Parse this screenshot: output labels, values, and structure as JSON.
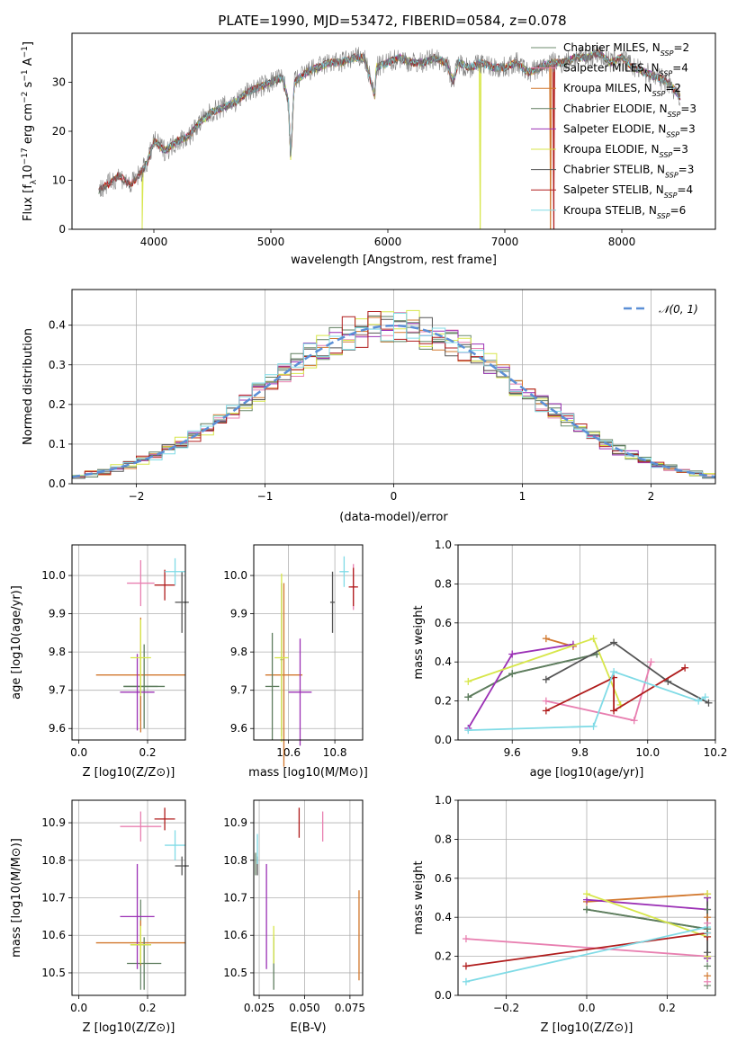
{
  "figure_title": "PLATE=1990, MJD=53472, FIBERID=0584, z=0.078",
  "colors": {
    "Chabrier MILES": "#6e8b6e",
    "Salpeter MILES": "#e87fb0",
    "Kroupa MILES": "#d2782e",
    "Chabrier ELODIE": "#5e7d5e",
    "Salpeter ELODIE": "#9b30b5",
    "Kroupa ELODIE": "#d7e64a",
    "Chabrier STELIB": "#555555",
    "Salpeter STELIB": "#b01c1c",
    "Kroupa STELIB": "#80dbe6",
    "gauss": "#5b8fd6"
  },
  "chart_data": [
    {
      "id": "spectrum",
      "type": "line",
      "xlabel": "wavelength [Angstrom, rest frame]",
      "ylabel": "Flux [f_λ 10^-17 erg cm^-2 s^-1 A^-1]",
      "xlim": [
        3300,
        8800
      ],
      "ylim": [
        0,
        40
      ],
      "xticks": [
        4000,
        5000,
        6000,
        7000,
        8000
      ],
      "yticks": [
        0,
        10,
        20,
        30
      ],
      "grid": false,
      "legend_position": "right",
      "legend": [
        {
          "model": "Chabrier MILES",
          "n_ssp": "2"
        },
        {
          "model": "Salpeter MILES",
          "n_ssp": "4"
        },
        {
          "model": "Kroupa MILES",
          "n_ssp": "2"
        },
        {
          "model": "Chabrier ELODIE",
          "n_ssp": "3"
        },
        {
          "model": "Salpeter ELODIE",
          "n_ssp": "3"
        },
        {
          "model": "Kroupa ELODIE",
          "n_ssp": "3"
        },
        {
          "model": "Chabrier STELIB",
          "n_ssp": "3"
        },
        {
          "model": "Salpeter STELIB",
          "n_ssp": "4"
        },
        {
          "model": "Kroupa STELIB",
          "n_ssp": "6"
        }
      ],
      "data_series": {
        "name": "data",
        "x": [
          3530,
          3600,
          3700,
          3800,
          3900,
          3950,
          4000,
          4100,
          4200,
          4300,
          4400,
          4500,
          4600,
          4700,
          4800,
          4900,
          5000,
          5100,
          5150,
          5170,
          5200,
          5300,
          5400,
          5500,
          5600,
          5700,
          5800,
          5890,
          5900,
          6000,
          6100,
          6200,
          6300,
          6400,
          6500,
          6560,
          6600,
          6700,
          6800,
          6900,
          7000,
          7100,
          7200,
          7300,
          7400,
          7500,
          7600,
          7700,
          7800,
          7900,
          8000,
          8100,
          8200,
          8300,
          8400,
          8500
        ],
        "y": [
          8,
          9,
          11,
          9,
          12,
          14,
          18,
          16,
          18,
          19,
          22,
          24,
          25,
          26,
          28,
          29,
          30,
          31,
          26,
          14,
          30,
          32,
          33,
          34,
          34,
          35,
          35,
          27,
          33,
          34,
          35,
          34,
          34,
          35,
          34,
          30,
          34,
          33,
          34,
          33,
          33,
          34,
          32,
          33,
          34,
          34,
          35,
          35,
          36,
          34,
          35,
          33,
          32,
          31,
          30,
          27
        ]
      },
      "artifact_drops": [
        {
          "series": "Kroupa ELODIE",
          "x": 3900
        },
        {
          "series": "Kroupa ELODIE",
          "x": 6790
        },
        {
          "series": "Kroupa MILES",
          "x": 7390
        },
        {
          "series": "Salpeter STELIB",
          "x": 7420
        }
      ]
    },
    {
      "id": "residuals",
      "type": "line",
      "xlabel": "(data-model)/error",
      "ylabel": "Normed distribution",
      "xlim": [
        -2.5,
        2.5
      ],
      "ylim": [
        0,
        0.49
      ],
      "xticks": [
        -2,
        -1,
        0,
        1,
        2
      ],
      "yticks": [
        0.0,
        0.1,
        0.2,
        0.3,
        0.4
      ],
      "grid": true,
      "legend_position": "top-right",
      "legend": [
        {
          "label": "N(0,1)",
          "style": "dashed"
        }
      ],
      "bin_width": 0.1,
      "gaussian": {
        "mean": 0,
        "sigma": 1
      }
    },
    {
      "id": "age-vs-Z",
      "type": "scatter",
      "xlabel": "Z [log10(Z/Z⊙)]",
      "ylabel": "age [log10(age/yr)]",
      "xlim": [
        -0.02,
        0.31
      ],
      "ylim": [
        9.57,
        10.08
      ],
      "xticks": [
        0.0,
        0.2
      ],
      "yticks": [
        9.6,
        9.7,
        9.8,
        9.9,
        10.0
      ],
      "grid": true,
      "points": [
        {
          "model": "Chabrier MILES",
          "x": 0.18,
          "y": 9.71,
          "xerr": 0.05,
          "yerr": 0.09
        },
        {
          "model": "Salpeter MILES",
          "x": 0.18,
          "y": 9.98,
          "xerr": 0.04,
          "yerr": 0.06
        },
        {
          "model": "Kroupa MILES",
          "x": 0.18,
          "y": 9.74,
          "xerr": 0.13,
          "yerr": 0.15
        },
        {
          "model": "Chabrier ELODIE",
          "x": 0.19,
          "y": 9.71,
          "xerr": 0.06,
          "yerr": 0.11
        },
        {
          "model": "Salpeter ELODIE",
          "x": 0.17,
          "y": 9.695,
          "xerr": 0.05,
          "yerr": 0.1
        },
        {
          "model": "Kroupa ELODIE",
          "x": 0.18,
          "y": 9.785,
          "xerr": 0.03,
          "yerr": 0.1
        },
        {
          "model": "Chabrier STELIB",
          "x": 0.3,
          "y": 9.93,
          "xerr": 0.02,
          "yerr": 0.08
        },
        {
          "model": "Salpeter STELIB",
          "x": 0.25,
          "y": 9.975,
          "xerr": 0.03,
          "yerr": 0.04
        },
        {
          "model": "Kroupa STELIB",
          "x": 0.28,
          "y": 10.01,
          "xerr": 0.03,
          "yerr": 0.035
        }
      ]
    },
    {
      "id": "age-vs-mass",
      "type": "scatter",
      "xlabel": "mass [log10(M/M⊙)]",
      "ylabel": "",
      "xlim": [
        10.45,
        10.92
      ],
      "ylim": [
        9.57,
        10.08
      ],
      "xticks": [
        10.6,
        10.8
      ],
      "yticks": [
        9.6,
        9.7,
        9.8,
        9.9,
        10.0
      ],
      "grid": true,
      "points": [
        {
          "model": "Chabrier MILES",
          "x": 10.57,
          "y": 9.78,
          "xerr": 0.005,
          "yerr": 0.2
        },
        {
          "model": "Salpeter MILES",
          "x": 10.88,
          "y": 9.97,
          "xerr": 0.01,
          "yerr": 0.06
        },
        {
          "model": "Kroupa MILES",
          "x": 10.58,
          "y": 9.74,
          "xerr": 0.08,
          "yerr": 0.24
        },
        {
          "model": "Chabrier ELODIE",
          "x": 10.53,
          "y": 9.71,
          "xerr": 0.03,
          "yerr": 0.14
        },
        {
          "model": "Salpeter ELODIE",
          "x": 10.65,
          "y": 9.695,
          "xerr": 0.05,
          "yerr": 0.14
        },
        {
          "model": "Kroupa ELODIE",
          "x": 10.57,
          "y": 9.785,
          "xerr": 0.03,
          "yerr": 0.22
        },
        {
          "model": "Chabrier STELIB",
          "x": 10.79,
          "y": 9.93,
          "xerr": 0.01,
          "yerr": 0.08
        },
        {
          "model": "Salpeter STELIB",
          "x": 10.88,
          "y": 9.97,
          "xerr": 0.02,
          "yerr": 0.05
        },
        {
          "model": "Kroupa STELIB",
          "x": 10.84,
          "y": 10.01,
          "xerr": 0.02,
          "yerr": 0.04
        }
      ]
    },
    {
      "id": "weight-vs-age",
      "type": "line",
      "xlabel": "age [log10(age/yr)]",
      "ylabel": "mass weight",
      "xlim": [
        9.44,
        10.2
      ],
      "ylim": [
        0,
        1.0
      ],
      "xticks": [
        9.6,
        9.8,
        10.0,
        10.2
      ],
      "yticks": [
        0.0,
        0.2,
        0.4,
        0.6,
        0.8,
        1.0
      ],
      "grid": true,
      "series": [
        {
          "model": "Chabrier MILES",
          "x": [
            9.47,
            9.6,
            9.85
          ],
          "y": [
            0.22,
            0.34,
            0.44
          ]
        },
        {
          "model": "Salpeter MILES",
          "x": [
            9.7,
            9.96,
            10.01
          ],
          "y": [
            0.2,
            0.1,
            0.4
          ]
        },
        {
          "model": "Kroupa MILES",
          "x": [
            9.7,
            9.78
          ],
          "y": [
            0.52,
            0.48
          ]
        },
        {
          "model": "Chabrier ELODIE",
          "x": [
            9.47,
            9.6,
            9.85
          ],
          "y": [
            0.22,
            0.34,
            0.44
          ]
        },
        {
          "model": "Salpeter ELODIE",
          "x": [
            9.47,
            9.6,
            9.78
          ],
          "y": [
            0.06,
            0.44,
            0.49
          ]
        },
        {
          "model": "Kroupa ELODIE",
          "x": [
            9.47,
            9.84,
            9.92
          ],
          "y": [
            0.3,
            0.52,
            0.18
          ]
        },
        {
          "model": "Chabrier STELIB",
          "x": [
            9.7,
            9.9,
            10.06,
            10.18
          ],
          "y": [
            0.31,
            0.5,
            0.3,
            0.19
          ]
        },
        {
          "model": "Salpeter STELIB",
          "x": [
            9.7,
            9.9,
            9.9,
            10.11
          ],
          "y": [
            0.15,
            0.32,
            0.15,
            0.37
          ]
        },
        {
          "model": "Kroupa STELIB",
          "x": [
            9.47,
            9.84,
            9.9,
            10.15,
            10.17
          ],
          "y": [
            0.05,
            0.07,
            0.35,
            0.2,
            0.22
          ]
        }
      ]
    },
    {
      "id": "mass-vs-Z",
      "type": "scatter",
      "xlabel": "Z [log10(Z/Z⊙)]",
      "ylabel": "mass [log10(M/M⊙)]",
      "xlim": [
        -0.02,
        0.31
      ],
      "ylim": [
        10.44,
        10.96
      ],
      "xticks": [
        0.0,
        0.2
      ],
      "yticks": [
        10.5,
        10.6,
        10.7,
        10.8,
        10.9
      ],
      "grid": true,
      "points": [
        {
          "model": "Chabrier MILES",
          "x": 0.18,
          "y": 10.575,
          "xerr": 0.03,
          "yerr": 0.12
        },
        {
          "model": "Salpeter MILES",
          "x": 0.18,
          "y": 10.89,
          "xerr": 0.06,
          "yerr": 0.04
        },
        {
          "model": "Kroupa MILES",
          "x": 0.18,
          "y": 10.58,
          "xerr": 0.13,
          "yerr": 0.06
        },
        {
          "model": "Chabrier ELODIE",
          "x": 0.19,
          "y": 10.525,
          "xerr": 0.05,
          "yerr": 0.07
        },
        {
          "model": "Salpeter ELODIE",
          "x": 0.17,
          "y": 10.65,
          "xerr": 0.05,
          "yerr": 0.14
        },
        {
          "model": "Kroupa ELODIE",
          "x": 0.18,
          "y": 10.575,
          "xerr": 0.03,
          "yerr": 0.05
        },
        {
          "model": "Chabrier STELIB",
          "x": 0.3,
          "y": 10.785,
          "xerr": 0.02,
          "yerr": 0.025
        },
        {
          "model": "Salpeter STELIB",
          "x": 0.25,
          "y": 10.91,
          "xerr": 0.03,
          "yerr": 0.03
        },
        {
          "model": "Kroupa STELIB",
          "x": 0.28,
          "y": 10.84,
          "xerr": 0.03,
          "yerr": 0.04
        }
      ]
    },
    {
      "id": "mass-vs-ebv",
      "type": "scatter",
      "xlabel": "E(B-V)",
      "ylabel": "",
      "xlim": [
        0.022,
        0.082
      ],
      "ylim": [
        10.44,
        10.96
      ],
      "xticks": [
        0.025,
        0.05,
        0.075
      ],
      "xticklabels": [
        "0.025",
        "0.050",
        "0.075"
      ],
      "yticks": [
        10.5,
        10.6,
        10.7,
        10.8,
        10.9
      ],
      "grid": true,
      "points": [
        {
          "model": "Chabrier MILES",
          "x": 0.023,
          "y": 10.79,
          "yerr": 0.03
        },
        {
          "model": "Salpeter MILES",
          "x": 0.06,
          "y": 10.89,
          "yerr": 0.04
        },
        {
          "model": "Kroupa MILES",
          "x": 0.08,
          "y": 10.6,
          "yerr": 0.12
        },
        {
          "model": "Chabrier ELODIE",
          "x": 0.033,
          "y": 10.525,
          "yerr": 0.07
        },
        {
          "model": "Salpeter ELODIE",
          "x": 0.029,
          "y": 10.65,
          "yerr": 0.14
        },
        {
          "model": "Kroupa ELODIE",
          "x": 0.033,
          "y": 10.575,
          "yerr": 0.05
        },
        {
          "model": "Chabrier STELIB",
          "x": 0.024,
          "y": 10.785,
          "yerr": 0.025
        },
        {
          "model": "Salpeter STELIB",
          "x": 0.047,
          "y": 10.9,
          "yerr": 0.04
        },
        {
          "model": "Kroupa STELIB",
          "x": 0.024,
          "y": 10.83,
          "yerr": 0.04
        }
      ]
    },
    {
      "id": "weight-vs-Z",
      "type": "line",
      "xlabel": "Z [log10(Z/Z⊙)]",
      "ylabel": "mass weight",
      "xlim": [
        -0.32,
        0.32
      ],
      "ylim": [
        0,
        1.0
      ],
      "xticks": [
        -0.2,
        0.0,
        0.2
      ],
      "yticks": [
        0.0,
        0.2,
        0.4,
        0.6,
        0.8,
        1.0
      ],
      "grid": true,
      "series": [
        {
          "model": "Chabrier MILES",
          "x": [
            0.0,
            0.3
          ],
          "y": [
            0.44,
            0.34
          ]
        },
        {
          "model": "Salpeter MILES",
          "x": [
            -0.3,
            0.3
          ],
          "y": [
            0.29,
            0.2
          ]
        },
        {
          "model": "Kroupa MILES",
          "x": [
            0.0,
            0.3
          ],
          "y": [
            0.48,
            0.52
          ]
        },
        {
          "model": "Chabrier ELODIE",
          "x": [
            0.0,
            0.3
          ],
          "y": [
            0.44,
            0.34
          ]
        },
        {
          "model": "Salpeter ELODIE",
          "x": [
            0.0,
            0.3
          ],
          "y": [
            0.49,
            0.44
          ]
        },
        {
          "model": "Kroupa ELODIE",
          "x": [
            0.0,
            0.3
          ],
          "y": [
            0.52,
            0.3
          ]
        },
        {
          "model": "Chabrier STELIB",
          "x": [
            0.3,
            0.3
          ],
          "y": [
            0.5,
            0.19
          ]
        },
        {
          "model": "Salpeter STELIB",
          "x": [
            -0.3,
            0.3
          ],
          "y": [
            0.15,
            0.32
          ]
        },
        {
          "model": "Kroupa STELIB",
          "x": [
            -0.3,
            0.3
          ],
          "y": [
            0.07,
            0.35
          ]
        }
      ],
      "markers_at_x": 0.3,
      "marker_values": [
        0.05,
        0.07,
        0.1,
        0.15,
        0.19,
        0.2,
        0.22,
        0.3,
        0.32,
        0.34,
        0.37,
        0.4,
        0.44,
        0.5,
        0.52
      ]
    }
  ]
}
